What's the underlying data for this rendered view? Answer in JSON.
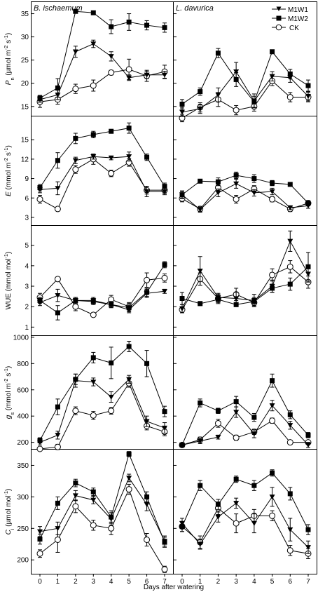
{
  "panel_titles": [
    "B. ischaemum",
    "L. davurica"
  ],
  "x_title": "Days after watering",
  "legend": [
    {
      "name": "M1W1",
      "marker": "triangle-down-filled"
    },
    {
      "name": "M1W2",
      "marker": "square-filled"
    },
    {
      "name": "CK",
      "marker": "circle-open"
    }
  ],
  "colors": {
    "line": "#000000",
    "fill": "#000000",
    "open_fill": "#ffffff"
  },
  "chart_data": [
    {
      "type": "line",
      "panel": "B. ischaemum",
      "row": 0,
      "ylabel": "P_n (µmol m^-2 s^-1)",
      "ylim": [
        13,
        37.5
      ],
      "yticks": [
        15,
        20,
        25,
        30,
        35
      ],
      "x": [
        0,
        1,
        2,
        3,
        4,
        5,
        6,
        7
      ],
      "series": [
        {
          "name": "M1W1",
          "values": [
            16.5,
            17.5,
            26.8,
            28.5,
            25.8,
            21.2,
            21.8,
            21.8
          ],
          "err": [
            0.6,
            1.0,
            1.2,
            0.8,
            1.0,
            0.6,
            0.8,
            0.8
          ]
        },
        {
          "name": "M1W2",
          "values": [
            16.8,
            19.0,
            35.5,
            35.2,
            32.2,
            33.2,
            32.5,
            32.0
          ],
          "err": [
            0.6,
            2.0,
            0.4,
            0.4,
            1.5,
            1.8,
            1.0,
            1.0
          ]
        },
        {
          "name": "CK",
          "values": [
            16.0,
            16.5,
            18.8,
            19.5,
            22.3,
            23.0,
            21.6,
            22.5
          ],
          "err": [
            1.2,
            1.0,
            1.0,
            1.2,
            0.5,
            2.2,
            1.2,
            1.4
          ]
        }
      ]
    },
    {
      "type": "line",
      "panel": "L. davurica",
      "row": 0,
      "ylabel": "",
      "ylim": [
        13,
        37.5
      ],
      "yticks": [
        15,
        20,
        25,
        30,
        35
      ],
      "x": [
        0,
        1,
        2,
        3,
        4,
        5,
        6,
        7
      ],
      "series": [
        {
          "name": "M1W1",
          "values": [
            13.8,
            14.5,
            17.5,
            22.5,
            16.2,
            21.5,
            21.2,
            17.2
          ],
          "err": [
            1.0,
            1.0,
            1.5,
            2.0,
            1.5,
            1.0,
            1.0,
            1.0
          ]
        },
        {
          "name": "M1W2",
          "values": [
            15.5,
            18.2,
            26.5,
            20.8,
            16.0,
            26.8,
            22.0,
            19.5
          ],
          "err": [
            1.0,
            0.8,
            1.0,
            1.5,
            1.2,
            0.4,
            1.0,
            1.2
          ]
        },
        {
          "name": "CK",
          "values": [
            12.5,
            14.8,
            16.5,
            14.2,
            15.0,
            20.5,
            17.0,
            17.0
          ],
          "err": [
            0.8,
            1.0,
            1.5,
            1.0,
            1.0,
            1.0,
            1.0,
            1.0
          ]
        }
      ]
    },
    {
      "type": "line",
      "panel": "B. ischaemum",
      "row": 1,
      "ylabel": "E (mmol m^-2 s^-1)",
      "ylim": [
        1.8,
        18.6
      ],
      "yticks": [
        3,
        6,
        9,
        12,
        15
      ],
      "x": [
        0,
        1,
        2,
        3,
        4,
        5,
        6,
        7
      ],
      "series": [
        {
          "name": "M1W1",
          "values": [
            7.3,
            7.5,
            11.8,
            12.4,
            12.2,
            12.4,
            7.0,
            7.0
          ],
          "err": [
            0.5,
            1.0,
            0.5,
            0.4,
            0.3,
            0.7,
            0.8,
            0.5
          ]
        },
        {
          "name": "M1W2",
          "values": [
            7.6,
            11.8,
            15.2,
            15.8,
            16.3,
            16.8,
            12.3,
            7.8
          ],
          "err": [
            0.5,
            1.2,
            0.8,
            0.5,
            0.3,
            0.8,
            0.5,
            0.5
          ]
        },
        {
          "name": "CK",
          "values": [
            5.8,
            4.3,
            10.4,
            12.0,
            9.8,
            11.5,
            7.2,
            7.2
          ],
          "err": [
            0.6,
            0.3,
            0.6,
            0.8,
            0.5,
            0.6,
            0.6,
            0.5
          ]
        }
      ]
    },
    {
      "type": "line",
      "panel": "L. davurica",
      "row": 1,
      "ylabel": "",
      "ylim": [
        1.8,
        18.6
      ],
      "yticks": [
        3,
        6,
        9,
        12,
        15
      ],
      "x": [
        0,
        1,
        2,
        3,
        4,
        5,
        6,
        7
      ],
      "series": [
        {
          "name": "M1W1",
          "values": [
            6.5,
            4.2,
            6.8,
            8.2,
            6.8,
            7.0,
            4.5,
            4.8
          ],
          "err": [
            0.6,
            0.4,
            0.6,
            0.7,
            0.5,
            0.5,
            0.3,
            0.4
          ]
        },
        {
          "name": "M1W2",
          "values": [
            6.5,
            8.6,
            8.5,
            9.5,
            9.0,
            8.3,
            8.1,
            5.2
          ],
          "err": [
            0.5,
            0.3,
            0.6,
            0.5,
            0.6,
            0.4,
            0.3,
            0.4
          ]
        },
        {
          "name": "CK",
          "values": [
            5.9,
            4.3,
            7.6,
            5.8,
            7.4,
            5.8,
            4.3,
            5.2
          ],
          "err": [
            0.5,
            0.4,
            0.5,
            0.6,
            0.5,
            0.4,
            0.4,
            0.4
          ]
        }
      ]
    },
    {
      "type": "line",
      "panel": "B. ischaemum",
      "row": 2,
      "ylabel": "WUE (mmol mol^-1)",
      "ylim": [
        0.6,
        5.95
      ],
      "yticks": [
        1,
        2,
        3,
        4,
        5
      ],
      "x": [
        0,
        1,
        2,
        3,
        4,
        5,
        6,
        7
      ],
      "series": [
        {
          "name": "M1W1",
          "values": [
            2.2,
            2.55,
            2.3,
            2.3,
            2.1,
            1.85,
            2.65,
            2.75
          ],
          "err": [
            0.15,
            0.3,
            0.15,
            0.15,
            0.15,
            0.15,
            0.2,
            0.1
          ]
        },
        {
          "name": "M1W2",
          "values": [
            2.3,
            1.7,
            2.3,
            2.25,
            2.1,
            1.95,
            2.7,
            4.05
          ],
          "err": [
            0.15,
            0.35,
            0.15,
            0.15,
            0.15,
            0.2,
            0.2,
            0.15
          ]
        },
        {
          "name": "CK",
          "values": [
            2.45,
            3.35,
            2.0,
            1.6,
            2.35,
            2.0,
            3.3,
            3.4
          ],
          "err": [
            0.2,
            0.1,
            0.2,
            0.1,
            0.2,
            0.2,
            0.35,
            0.2
          ]
        }
      ]
    },
    {
      "type": "line",
      "panel": "L. davurica",
      "row": 2,
      "ylabel": "",
      "ylim": [
        0.6,
        5.95
      ],
      "yticks": [
        1,
        2,
        3,
        4,
        5
      ],
      "x": [
        0,
        1,
        2,
        3,
        4,
        5,
        6,
        7
      ],
      "series": [
        {
          "name": "M1W1",
          "values": [
            1.9,
            3.75,
            2.45,
            2.4,
            2.3,
            3.0,
            5.2,
            3.6
          ],
          "err": [
            0.2,
            0.7,
            0.2,
            0.3,
            0.3,
            0.3,
            0.5,
            0.4
          ]
        },
        {
          "name": "M1W2",
          "values": [
            2.4,
            2.15,
            2.35,
            2.1,
            2.25,
            2.9,
            3.1,
            3.95
          ],
          "err": [
            0.3,
            0.1,
            0.2,
            0.1,
            0.2,
            0.2,
            0.3,
            0.7
          ]
        },
        {
          "name": "CK",
          "values": [
            1.85,
            3.35,
            2.4,
            2.6,
            2.2,
            3.55,
            3.95,
            3.2
          ],
          "err": [
            0.15,
            0.3,
            0.2,
            0.3,
            0.2,
            0.3,
            0.3,
            0.3
          ]
        }
      ]
    },
    {
      "type": "line",
      "panel": "B. ischaemum",
      "row": 3,
      "ylabel": "g_s (mmol m^-2 s^-1)",
      "ylim": [
        150,
        1010
      ],
      "yticks": [
        200,
        400,
        600,
        800,
        1000
      ],
      "x": [
        0,
        1,
        2,
        3,
        4,
        5,
        6,
        7
      ],
      "series": [
        {
          "name": "M1W1",
          "values": [
            200,
            255,
            670,
            660,
            545,
            680,
            360,
            310
          ],
          "err": [
            20,
            30,
            50,
            30,
            40,
            30,
            40,
            40
          ]
        },
        {
          "name": "M1W2",
          "values": [
            215,
            470,
            680,
            845,
            805,
            930,
            800,
            435
          ],
          "err": [
            20,
            60,
            40,
            40,
            120,
            40,
            100,
            40
          ]
        },
        {
          "name": "CK",
          "values": [
            150,
            165,
            440,
            405,
            440,
            650,
            325,
            280
          ],
          "err": [
            15,
            20,
            30,
            30,
            25,
            30,
            30,
            30
          ]
        }
      ]
    },
    {
      "type": "line",
      "panel": "L. davurica",
      "row": 3,
      "ylabel": "",
      "ylim": [
        150,
        1010
      ],
      "yticks": [
        200,
        400,
        600,
        800,
        1000
      ],
      "x": [
        0,
        1,
        2,
        3,
        4,
        5,
        6,
        7
      ],
      "series": [
        {
          "name": "M1W1",
          "values": [
            180,
            210,
            240,
            430,
            265,
            480,
            330,
            180
          ],
          "err": [
            15,
            20,
            15,
            40,
            30,
            40,
            30,
            20
          ]
        },
        {
          "name": "M1W2",
          "values": [
            180,
            500,
            440,
            510,
            390,
            670,
            410,
            255
          ],
          "err": [
            15,
            30,
            20,
            40,
            30,
            50,
            30,
            20
          ]
        },
        {
          "name": "CK",
          "values": [
            180,
            220,
            345,
            235,
            280,
            365,
            200,
            200
          ],
          "err": [
            15,
            20,
            30,
            20,
            20,
            20,
            15,
            15
          ]
        }
      ]
    },
    {
      "type": "line",
      "panel": "B. ischaemum",
      "row": 4,
      "ylabel": "C_i (µmol mol^-1)",
      "ylim": [
        178,
        375
      ],
      "yticks": [
        200,
        250,
        300,
        350
      ],
      "x": [
        0,
        1,
        2,
        3,
        4,
        5,
        6,
        7
      ],
      "series": [
        {
          "name": "M1W1",
          "values": [
            245,
            250,
            302,
            295,
            265,
            330,
            288,
            230
          ],
          "err": [
            8,
            10,
            8,
            6,
            10,
            6,
            10,
            8
          ]
        },
        {
          "name": "M1W2",
          "values": [
            233,
            290,
            322,
            308,
            268,
            368,
            300,
            228
          ],
          "err": [
            8,
            10,
            6,
            6,
            10,
            4,
            8,
            8
          ]
        },
        {
          "name": "CK",
          "values": [
            210,
            232,
            285,
            255,
            250,
            312,
            232,
            185
          ],
          "err": [
            6,
            20,
            10,
            8,
            10,
            8,
            10,
            5
          ]
        }
      ]
    },
    {
      "type": "line",
      "panel": "L. davurica",
      "row": 4,
      "ylabel": "",
      "ylim": [
        178,
        375
      ],
      "yticks": [
        200,
        250,
        300,
        350
      ],
      "x": [
        0,
        1,
        2,
        3,
        4,
        5,
        6,
        7
      ],
      "series": [
        {
          "name": "M1W1",
          "values": [
            258,
            225,
            268,
            290,
            258,
            300,
            248,
            220
          ],
          "err": [
            8,
            8,
            8,
            8,
            15,
            15,
            18,
            10
          ]
        },
        {
          "name": "M1W2",
          "values": [
            253,
            318,
            288,
            328,
            318,
            338,
            305,
            248
          ],
          "err": [
            8,
            8,
            8,
            5,
            8,
            5,
            10,
            8
          ]
        },
        {
          "name": "CK",
          "values": [
            253,
            228,
            282,
            258,
            270,
            270,
            215,
            210
          ],
          "err": [
            8,
            10,
            10,
            15,
            10,
            8,
            8,
            8
          ]
        }
      ]
    }
  ]
}
